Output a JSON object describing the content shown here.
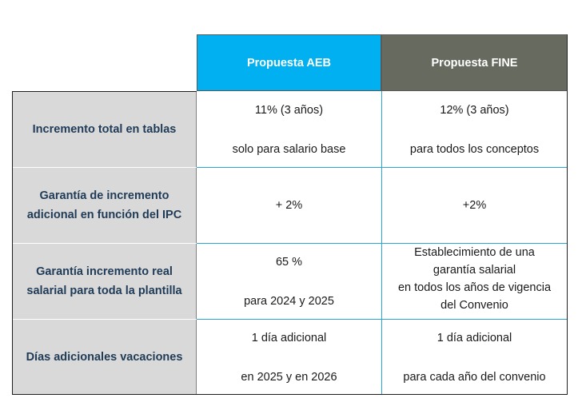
{
  "header": {
    "col_aeb": "Propuesta AEB",
    "col_fine": "Propuesta FINE"
  },
  "rows": [
    {
      "label_lines": [
        "Incremento total en tablas"
      ],
      "aeb_lines": [
        "11% (3 años)",
        "solo para salario base"
      ],
      "fine_lines": [
        "12% (3 años)",
        "para todos los conceptos"
      ]
    },
    {
      "label_lines": [
        "Garantía de incremento",
        "adicional en función del IPC"
      ],
      "aeb_lines": [
        "+ 2%"
      ],
      "fine_lines": [
        "+2%"
      ]
    },
    {
      "label_lines": [
        "Garantía incremento real",
        "salarial para toda la plantilla"
      ],
      "aeb_lines": [
        "65 %",
        "para 2024 y 2025"
      ],
      "fine_lines": [
        "Establecimiento de una",
        "garantía salarial",
        "en todos los años de vigencia",
        "del Convenio"
      ]
    },
    {
      "label_lines": [
        "Días adicionales vacaciones"
      ],
      "aeb_lines": [
        "1 día adicional",
        "en 2025 y en 2026"
      ],
      "fine_lines": [
        "1 día adicional",
        "para cada año del convenio"
      ]
    }
  ]
}
